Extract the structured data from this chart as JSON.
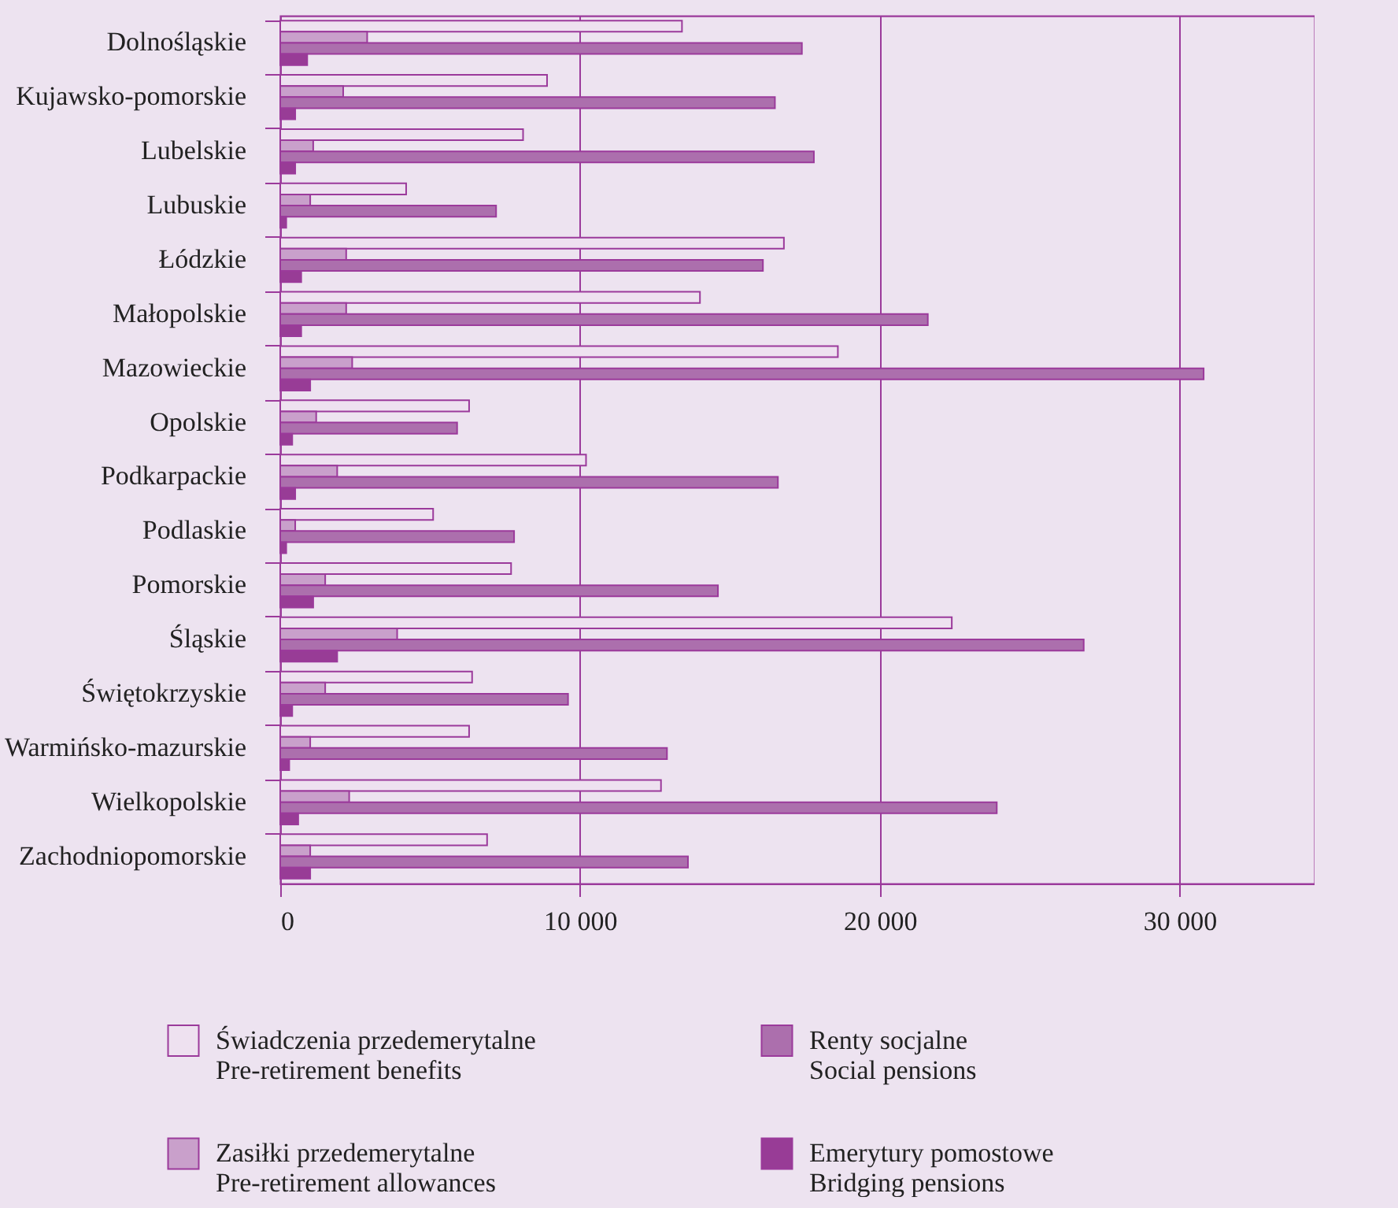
{
  "chart_data": {
    "type": "bar",
    "orientation": "horizontal",
    "categories": [
      "Dolnośląskie",
      "Kujawsko-pomorskie",
      "Lubelskie",
      "Lubuskie",
      "Łódzkie",
      "Małopolskie",
      "Mazowieckie",
      "Opolskie",
      "Podkarpackie",
      "Podlaskie",
      "Pomorskie",
      "Śląskie",
      "Świętokrzyskie",
      "Warmińsko-mazurskie",
      "Wielkopolskie",
      "Zachodniopomorskie"
    ],
    "series": [
      {
        "name": "Świadczenia przedemerytalne\nPre-retirement benefits",
        "color": "#eee1f0",
        "values": [
          13400,
          8900,
          8100,
          4200,
          16800,
          14000,
          18600,
          6300,
          10200,
          5100,
          7700,
          22400,
          6400,
          6300,
          12700,
          6900
        ]
      },
      {
        "name": "Zasiłki przedemerytalne\nPre-retirement allowances",
        "color": "#c9a0cb",
        "values": [
          2900,
          2100,
          1100,
          1000,
          2200,
          2200,
          2400,
          1200,
          1900,
          500,
          1500,
          3900,
          1500,
          1000,
          2300,
          1000
        ]
      },
      {
        "name": "Renty socjalne\nSocial pensions",
        "color": "#ac6fad",
        "values": [
          17400,
          16500,
          17800,
          7200,
          16100,
          21600,
          30800,
          5900,
          16600,
          7800,
          14600,
          26800,
          9600,
          12900,
          23900,
          13600
        ]
      },
      {
        "name": "Emerytury pomostowe\nBridging pensions",
        "color": "#983c96",
        "values": [
          900,
          500,
          500,
          200,
          700,
          700,
          1000,
          400,
          500,
          200,
          1100,
          1900,
          400,
          300,
          600,
          1000
        ]
      }
    ],
    "xlim": [
      0,
      34500
    ],
    "xticks": [
      0,
      {
        "value": 10000,
        "label": "10 000"
      },
      {
        "value": 20000,
        "label": "20 000"
      },
      {
        "value": 30000,
        "label": "30 000"
      }
    ],
    "grid": "x",
    "legend": "bottom"
  }
}
